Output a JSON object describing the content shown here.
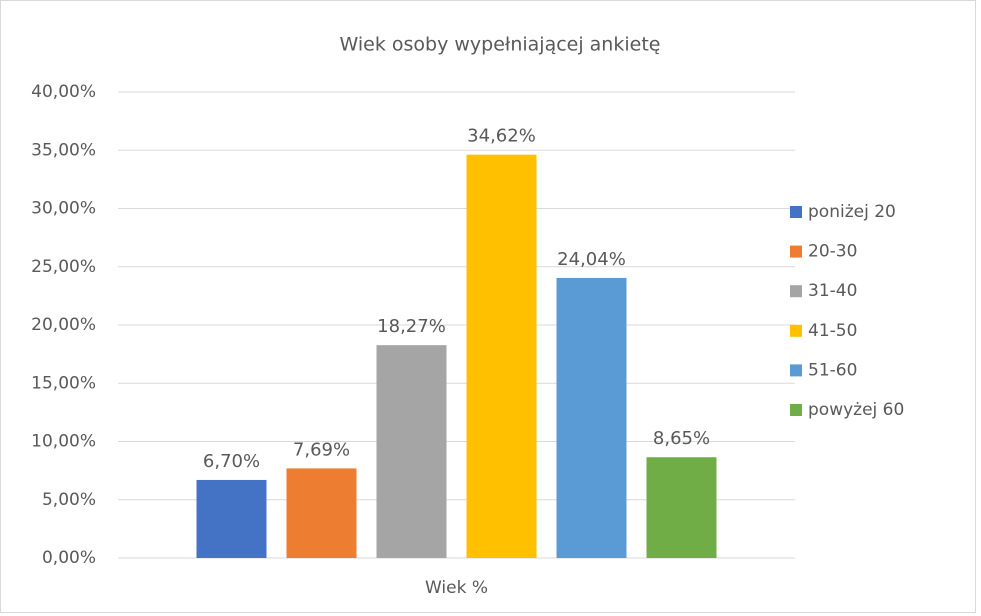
{
  "chart_data": {
    "type": "bar",
    "title": "Wiek osoby wypełniającej ankietę",
    "categories": [
      "Wiek %"
    ],
    "series": [
      {
        "name": "poniżej 20",
        "color": "#4472c4",
        "values": [
          6.7
        ],
        "value_labels": [
          "6,70%"
        ]
      },
      {
        "name": "20-30",
        "color": "#ed7d31",
        "values": [
          7.69
        ],
        "value_labels": [
          "7,69%"
        ]
      },
      {
        "name": "31-40",
        "color": "#a5a5a5",
        "values": [
          18.27
        ],
        "value_labels": [
          "18,27%"
        ]
      },
      {
        "name": "41-50",
        "color": "#ffc000",
        "values": [
          34.62
        ],
        "value_labels": [
          "34,62%"
        ]
      },
      {
        "name": "51-60",
        "color": "#5b9bd5",
        "values": [
          24.04
        ],
        "value_labels": [
          "24,04%"
        ]
      },
      {
        "name": "powyżej 60",
        "color": "#70ad47",
        "values": [
          8.65
        ],
        "value_labels": [
          "8,65%"
        ]
      }
    ],
    "ylim": [
      0,
      40
    ],
    "yticks": [
      {
        "value": 0,
        "label": "0,00%"
      },
      {
        "value": 5,
        "label": "5,00%"
      },
      {
        "value": 10,
        "label": "10,00%"
      },
      {
        "value": 15,
        "label": "15,00%"
      },
      {
        "value": 20,
        "label": "20,00%"
      },
      {
        "value": 25,
        "label": "25,00%"
      },
      {
        "value": 30,
        "label": "30,00%"
      },
      {
        "value": 35,
        "label": "35,00%"
      },
      {
        "value": 40,
        "label": "40,00%"
      }
    ],
    "grid": true,
    "legend": "right"
  }
}
